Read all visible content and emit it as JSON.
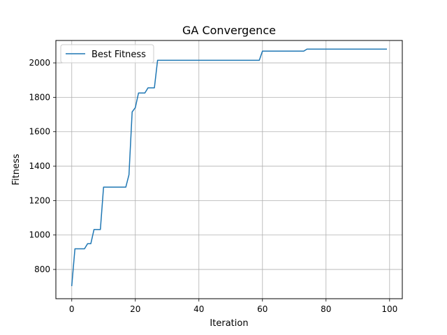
{
  "chart_data": {
    "type": "line",
    "title": "GA Convergence",
    "xlabel": "Iteration",
    "ylabel": "Fitness",
    "xlim": [
      -5,
      104
    ],
    "ylim": [
      630,
      2130
    ],
    "xticks": [
      0,
      20,
      40,
      60,
      80,
      100
    ],
    "yticks": [
      800,
      1000,
      1200,
      1400,
      1600,
      1800,
      2000
    ],
    "grid": true,
    "legend": "top-left",
    "series": [
      {
        "name": "Best Fitness",
        "color": "#1f77b4",
        "x": [
          0,
          1,
          2,
          3,
          4,
          5,
          6,
          7,
          8,
          9,
          10,
          11,
          12,
          13,
          14,
          15,
          16,
          17,
          18,
          19,
          20,
          21,
          22,
          23,
          24,
          25,
          26,
          27,
          28,
          29,
          30,
          31,
          32,
          33,
          34,
          35,
          36,
          37,
          38,
          39,
          40,
          41,
          42,
          43,
          44,
          45,
          46,
          47,
          48,
          49,
          50,
          51,
          52,
          53,
          54,
          55,
          56,
          57,
          58,
          59,
          60,
          61,
          62,
          63,
          64,
          65,
          66,
          67,
          68,
          69,
          70,
          71,
          72,
          73,
          74,
          75,
          76,
          77,
          78,
          79,
          80,
          81,
          82,
          83,
          84,
          85,
          86,
          87,
          88,
          89,
          90,
          91,
          92,
          93,
          94,
          95,
          96,
          97,
          98,
          99
        ],
        "values": [
          706,
          920,
          920,
          920,
          920,
          950,
          950,
          1032,
          1032,
          1032,
          1278,
          1278,
          1278,
          1278,
          1278,
          1278,
          1278,
          1278,
          1350,
          1715,
          1740,
          1825,
          1825,
          1825,
          1855,
          1855,
          1855,
          2015,
          2015,
          2015,
          2015,
          2015,
          2015,
          2015,
          2015,
          2015,
          2015,
          2015,
          2015,
          2015,
          2015,
          2015,
          2015,
          2015,
          2015,
          2015,
          2015,
          2015,
          2015,
          2015,
          2015,
          2015,
          2015,
          2015,
          2015,
          2015,
          2015,
          2015,
          2015,
          2015,
          2068,
          2068,
          2068,
          2068,
          2068,
          2068,
          2068,
          2068,
          2068,
          2068,
          2068,
          2068,
          2068,
          2068,
          2080,
          2080,
          2080,
          2080,
          2080,
          2080,
          2080,
          2080,
          2080,
          2080,
          2080,
          2080,
          2080,
          2080,
          2080,
          2080,
          2080,
          2080,
          2080,
          2080,
          2080,
          2080,
          2080,
          2080,
          2080,
          2080
        ]
      }
    ]
  }
}
